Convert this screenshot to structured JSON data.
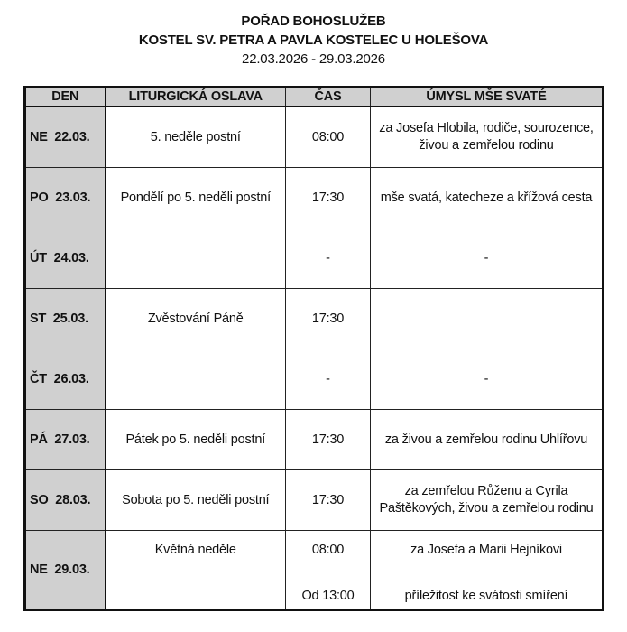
{
  "header": {
    "title": "POŘAD BOHOSLUŽEB",
    "subtitle": "KOSTEL SV. PETRA A PAVLA KOSTELEC U HOLEŠOVA",
    "date_range": "22.03.2026 - 29.03.2026"
  },
  "table": {
    "columns": [
      "DEN",
      "LITURGICKÁ OSLAVA",
      "ČAS",
      "ÚMYSL MŠE SVATÉ"
    ],
    "rows": [
      {
        "day": "NE  22.03.",
        "celebration": "5. neděle postní",
        "time": "08:00",
        "intention": "za Josefa Hlobila, rodiče, sourozence, živou a zemřelou rodinu"
      },
      {
        "day": "PO  23.03.",
        "celebration": "Pondělí po 5. neděli postní",
        "time": "17:30",
        "intention": "mše svatá, katecheze a křížová cesta"
      },
      {
        "day": "ÚT  24.03.",
        "celebration": "",
        "time": "-",
        "intention": "-"
      },
      {
        "day": "ST  25.03.",
        "celebration": "Zvěstování Páně",
        "time": "17:30",
        "intention": ""
      },
      {
        "day": "ČT  26.03.",
        "celebration": "",
        "time": "-",
        "intention": "-"
      },
      {
        "day": "PÁ  27.03.",
        "celebration": "Pátek po 5. neděli postní",
        "time": "17:30",
        "intention": "za živou a zemřelou rodinu Uhlířovu"
      },
      {
        "day": "SO  28.03.",
        "celebration": "Sobota po 5. neděli postní",
        "time": "17:30",
        "intention": "za zemřelou Růženu a Cyrila Paštěkových, živou a zemřelou rodinu"
      }
    ],
    "last_row": {
      "day": "NE  29.03.",
      "celebration": "Květná neděle",
      "time_1": "08:00",
      "time_2": "Od 13:00",
      "intention_1": "za Josefa a Marii Hejníkovi",
      "intention_2": "příležitost ke svátosti smíření"
    }
  }
}
